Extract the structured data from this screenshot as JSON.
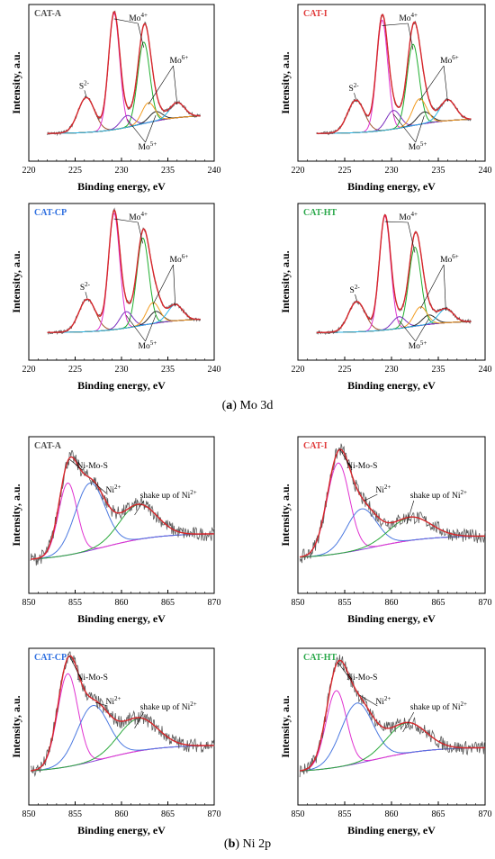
{
  "captions": [
    {
      "letter": "a",
      "text": "Mo 3d"
    },
    {
      "letter": "b",
      "text": "Ni 2p"
    }
  ],
  "colors": {
    "raw": "#5a5a5a",
    "envelope": "#d7262b",
    "background": "#3a5fd6",
    "S2-": "#a0522d",
    "Mo4+": "#e032d0",
    "Mo4+_b": "#1fae2e",
    "Mo5+": "#7a2fbf",
    "Mo5+_b": "#2a2a2a",
    "Mo6+": "#f29b1f",
    "Mo6+_b": "#29b6e8",
    "Ni-Mo-S": "#e032d0",
    "Ni2+": "#4a78e0",
    "shake": "#28a83a",
    "ni_bg": "#8a3fd6",
    "CAT-A": "#505050",
    "CAT-I": "#e03a3a",
    "CAT-CP": "#2e6fe0",
    "CAT-HT": "#2aa84a"
  },
  "chart_data": [
    {
      "panel": "Mo 3d",
      "sample": "CAT-A",
      "type": "line",
      "xlabel": "Binding energy, eV",
      "ylabel": "Intensity, a.u.",
      "xlim": [
        220,
        240
      ],
      "xticks": [
        220,
        225,
        230,
        235,
        240
      ],
      "data_range": [
        222,
        238.5
      ],
      "annotations": [
        "S2-",
        "Mo4+",
        "Mo6+",
        "Mo5+"
      ],
      "components": [
        {
          "name": "S2-",
          "center": 226.2,
          "amp": 0.3,
          "width": 0.9
        },
        {
          "name": "Mo4+",
          "center": 229.2,
          "amp": 1.0,
          "width": 0.6
        },
        {
          "name": "Mo4+",
          "center": 232.4,
          "amp": 0.7,
          "width": 0.65
        },
        {
          "name": "Mo5+",
          "center": 230.6,
          "amp": 0.1,
          "width": 0.7
        },
        {
          "name": "Mo5+",
          "center": 233.7,
          "amp": 0.08,
          "width": 0.7
        },
        {
          "name": "Mo6+",
          "center": 232.9,
          "amp": 0.17,
          "width": 0.7
        },
        {
          "name": "Mo6+",
          "center": 236.0,
          "amp": 0.13,
          "width": 0.8
        }
      ],
      "baseline": [
        0.02,
        0.18
      ]
    },
    {
      "panel": "Mo 3d",
      "sample": "CAT-I",
      "type": "line",
      "xlabel": "Binding energy, eV",
      "ylabel": "Intensity, a.u.",
      "xlim": [
        220,
        240
      ],
      "xticks": [
        220,
        225,
        230,
        235,
        240
      ],
      "data_range": [
        222,
        238.5
      ],
      "annotations": [
        "S2-",
        "Mo4+",
        "Mo6+",
        "Mo5+"
      ],
      "components": [
        {
          "name": "S2-",
          "center": 226.2,
          "amp": 0.28,
          "width": 0.9
        },
        {
          "name": "Mo4+",
          "center": 229.0,
          "amp": 0.95,
          "width": 0.6
        },
        {
          "name": "Mo4+",
          "center": 232.3,
          "amp": 0.7,
          "width": 0.65
        },
        {
          "name": "Mo5+",
          "center": 230.2,
          "amp": 0.16,
          "width": 0.75
        },
        {
          "name": "Mo5+",
          "center": 233.5,
          "amp": 0.1,
          "width": 0.75
        },
        {
          "name": "Mo6+",
          "center": 233.0,
          "amp": 0.22,
          "width": 0.75
        },
        {
          "name": "Mo6+",
          "center": 236.0,
          "amp": 0.18,
          "width": 0.85
        }
      ],
      "baseline": [
        0.02,
        0.15
      ]
    },
    {
      "panel": "Mo 3d",
      "sample": "CAT-CP",
      "type": "line",
      "xlabel": "Binding energy, eV",
      "ylabel": "Intensity, a.u.",
      "xlim": [
        220,
        240
      ],
      "xticks": [
        220,
        225,
        230,
        235,
        240
      ],
      "data_range": [
        222,
        238.5
      ],
      "annotations": [
        "S2-",
        "Mo4+",
        "Mo6+",
        "Mo5+"
      ],
      "components": [
        {
          "name": "S2-",
          "center": 226.3,
          "amp": 0.28,
          "width": 0.9
        },
        {
          "name": "Mo4+",
          "center": 229.2,
          "amp": 1.0,
          "width": 0.6
        },
        {
          "name": "Mo4+",
          "center": 232.3,
          "amp": 0.75,
          "width": 0.65
        },
        {
          "name": "Mo5+",
          "center": 230.5,
          "amp": 0.14,
          "width": 0.7
        },
        {
          "name": "Mo5+",
          "center": 233.7,
          "amp": 0.1,
          "width": 0.7
        },
        {
          "name": "Mo6+",
          "center": 233.4,
          "amp": 0.18,
          "width": 0.7
        },
        {
          "name": "Mo6+",
          "center": 235.8,
          "amp": 0.14,
          "width": 0.8
        }
      ],
      "baseline": [
        0.02,
        0.14
      ]
    },
    {
      "panel": "Mo 3d",
      "sample": "CAT-HT",
      "type": "line",
      "xlabel": "Binding energy, eV",
      "ylabel": "Intensity, a.u.",
      "xlim": [
        220,
        240
      ],
      "xticks": [
        220,
        225,
        230,
        235,
        240
      ],
      "data_range": [
        222,
        238.5
      ],
      "annotations": [
        "S2-",
        "Mo4+",
        "Mo6+",
        "Mo5+"
      ],
      "components": [
        {
          "name": "S2-",
          "center": 226.3,
          "amp": 0.26,
          "width": 0.9
        },
        {
          "name": "Mo4+",
          "center": 229.3,
          "amp": 0.98,
          "width": 0.6
        },
        {
          "name": "Mo4+",
          "center": 232.5,
          "amp": 0.68,
          "width": 0.65
        },
        {
          "name": "Mo5+",
          "center": 230.8,
          "amp": 0.1,
          "width": 0.7
        },
        {
          "name": "Mo5+",
          "center": 234.0,
          "amp": 0.08,
          "width": 0.7
        },
        {
          "name": "Mo6+",
          "center": 233.1,
          "amp": 0.16,
          "width": 0.7
        },
        {
          "name": "Mo6+",
          "center": 235.8,
          "amp": 0.12,
          "width": 0.8
        }
      ],
      "baseline": [
        0.02,
        0.12
      ]
    },
    {
      "panel": "Ni 2p",
      "sample": "CAT-A",
      "type": "line",
      "xlabel": "Binding energy, eV",
      "ylabel": "Intensity, a.u.",
      "xlim": [
        850,
        870
      ],
      "xticks": [
        850,
        855,
        860,
        865,
        870
      ],
      "data_range": [
        850.2,
        870
      ],
      "annotations": [
        "Ni-Mo-S",
        "Ni2+",
        "shake up of Ni2+"
      ],
      "components": [
        {
          "name": "Ni-Mo-S",
          "center": 854.2,
          "amp": 0.62,
          "width": 1.0
        },
        {
          "name": "Ni2+",
          "center": 856.6,
          "amp": 0.58,
          "width": 1.6
        },
        {
          "name": "shake up of Ni2+",
          "center": 861.8,
          "amp": 0.3,
          "width": 2.0
        }
      ],
      "baseline": [
        0.06,
        0.3
      ]
    },
    {
      "panel": "Ni 2p",
      "sample": "CAT-I",
      "type": "line",
      "xlabel": "Binding energy, eV",
      "ylabel": "Intensity, a.u.",
      "xlim": [
        850,
        870
      ],
      "xticks": [
        850,
        855,
        860,
        865,
        870
      ],
      "data_range": [
        850.2,
        870
      ],
      "annotations": [
        "Ni-Mo-S",
        "Ni2+",
        "shake up of Ni2+"
      ],
      "components": [
        {
          "name": "Ni-Mo-S",
          "center": 854.3,
          "amp": 0.78,
          "width": 1.2
        },
        {
          "name": "Ni2+",
          "center": 856.8,
          "amp": 0.35,
          "width": 1.6
        },
        {
          "name": "shake up of Ni2+",
          "center": 862.0,
          "amp": 0.2,
          "width": 2.2
        }
      ],
      "baseline": [
        0.08,
        0.28
      ]
    },
    {
      "panel": "Ni 2p",
      "sample": "CAT-CP",
      "type": "line",
      "xlabel": "Binding energy, eV",
      "ylabel": "Intensity, a.u.",
      "xlim": [
        850,
        870
      ],
      "xticks": [
        850,
        855,
        860,
        865,
        870
      ],
      "data_range": [
        850.2,
        870
      ],
      "annotations": [
        "Ni-Mo-S",
        "Ni2+",
        "shake up of Ni2+"
      ],
      "components": [
        {
          "name": "Ni-Mo-S",
          "center": 854.2,
          "amp": 0.8,
          "width": 1.1
        },
        {
          "name": "Ni2+",
          "center": 856.9,
          "amp": 0.48,
          "width": 1.7
        },
        {
          "name": "shake up of Ni2+",
          "center": 861.8,
          "amp": 0.28,
          "width": 2.1
        }
      ],
      "baseline": [
        0.06,
        0.3
      ]
    },
    {
      "panel": "Ni 2p",
      "sample": "CAT-HT",
      "type": "line",
      "xlabel": "Binding energy, eV",
      "ylabel": "Intensity, a.u.",
      "xlim": [
        850,
        870
      ],
      "xticks": [
        850,
        855,
        860,
        865,
        870
      ],
      "data_range": [
        850.2,
        870
      ],
      "annotations": [
        "Ni-Mo-S",
        "Ni2+",
        "shake up of Ni2+"
      ],
      "components": [
        {
          "name": "Ni-Mo-S",
          "center": 854.1,
          "amp": 0.66,
          "width": 1.1
        },
        {
          "name": "Ni2+",
          "center": 856.3,
          "amp": 0.52,
          "width": 1.7
        },
        {
          "name": "shake up of Ni2+",
          "center": 861.6,
          "amp": 0.26,
          "width": 2.1
        }
      ],
      "baseline": [
        0.06,
        0.28
      ]
    }
  ]
}
